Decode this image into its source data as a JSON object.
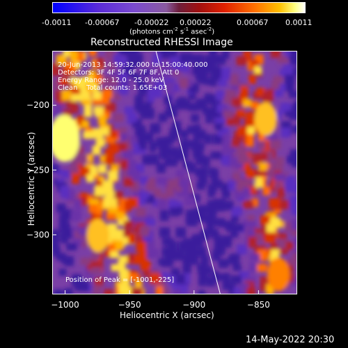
{
  "colorbar": {
    "ticks": [
      "-0.0011",
      "-0.00067",
      "-0.00022",
      "0.00022",
      "0.00067",
      "0.0011"
    ],
    "unit_label": "(photons cm",
    "unit_sup1": "-2",
    "unit_mid": " s",
    "unit_sup2": "-1",
    "unit_mid2": " asec",
    "unit_sup3": "-2",
    "unit_end": ")"
  },
  "header": {
    "title": "Reconstructed RHESSI Image",
    "line1": "20-Jun-2013 14:59:32.000 to 15:00:40.000",
    "line2": "Detectors: 3F 4F 5F 6F 7F 8F, Att 0",
    "line3": "Energy Range: 12.0 - 25.0 keV",
    "line4": "Clean    Total counts: 1.65E+03",
    "peak": "Position of Peak = [-1001,-225]"
  },
  "footer": {
    "date": "14-May-2022 20:30"
  },
  "chart_data": {
    "type": "heatmap",
    "title": "Reconstructed RHESSI Image",
    "xlabel": "Heliocentric X (arcsec)",
    "ylabel": "Heliocentric Y (arcsec)",
    "xlim": [
      -1010,
      -820
    ],
    "ylim": [
      -346,
      -158
    ],
    "xticks": [
      -1000,
      -950,
      -900,
      -850
    ],
    "yticks": [
      -200,
      -250,
      -300
    ],
    "colorbar_range": [
      -0.0011,
      0.0011
    ],
    "limb_line": [
      [
        -930,
        -158
      ],
      [
        -880,
        -346
      ]
    ],
    "bright_regions": [
      {
        "x": -1001,
        "y": -225,
        "level": "peak"
      },
      {
        "x": -975,
        "y": -300,
        "level": "high"
      },
      {
        "x": -845,
        "y": -210,
        "level": "high"
      },
      {
        "x": -835,
        "y": -330,
        "level": "medium"
      }
    ]
  }
}
